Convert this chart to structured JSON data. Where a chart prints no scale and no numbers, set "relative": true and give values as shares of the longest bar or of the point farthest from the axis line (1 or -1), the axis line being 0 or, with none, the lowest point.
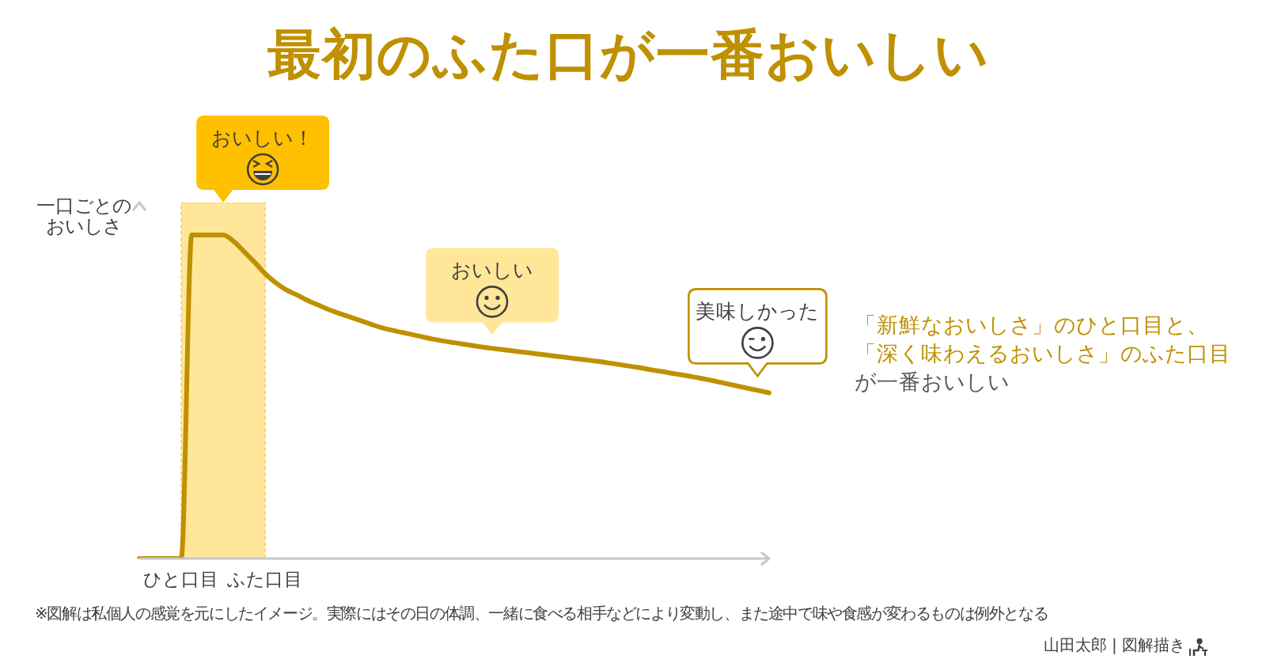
{
  "chart_data": {
    "type": "line",
    "title": "最初のふた口が一番おいしい",
    "ylabel": "一口ごとのおいしさ",
    "relative": true,
    "categories": [
      null,
      null,
      null,
      null,
      "ひと口目",
      null,
      null,
      null,
      null,
      null,
      null,
      null,
      "ふた口目",
      null,
      null,
      null,
      null,
      null,
      null,
      null,
      null,
      null,
      null,
      null,
      null,
      null,
      null,
      null,
      null,
      null,
      null,
      null,
      null,
      null,
      null,
      null,
      null,
      null,
      null,
      null,
      null,
      null,
      null,
      null,
      null,
      null,
      null,
      null,
      null,
      null,
      null,
      null,
      null,
      null,
      null,
      null,
      null,
      null,
      null,
      null,
      null
    ],
    "series": [
      {
        "color": "#bf9000",
        "values": [
          0,
          0,
          0,
          0,
          0,
          1,
          1,
          1,
          1,
          0.98,
          0.948,
          0.915,
          0.88,
          0.852,
          0.83,
          0.815,
          0.798,
          0.784,
          0.77,
          0.758,
          0.747,
          0.736,
          0.725,
          0.714,
          0.706,
          0.699,
          0.692,
          0.685,
          0.678,
          0.672,
          0.667,
          0.662,
          0.657,
          0.652,
          0.648,
          0.644,
          0.64,
          0.636,
          0.632,
          0.628,
          0.624,
          0.62,
          0.616,
          0.612,
          0.608,
          0.603,
          0.598,
          0.593,
          0.588,
          0.582,
          0.577,
          0.571,
          0.566,
          0.56,
          0.554,
          0.547,
          0.54,
          0.533,
          0.526,
          0.519,
          0.512
        ]
      }
    ],
    "bands": [
      {
        "axis": "x",
        "from": "ひと口目",
        "to": "ふた口目",
        "label": "おいしい！",
        "color": "#ffe699"
      }
    ],
    "annotations": [
      "おいしい",
      "美味しかった",
      "「新鮮なおいしさ」のひと口目と、",
      "「深く味わえるおいしさ」のふた口目",
      "が一番おいしい",
      "※図解は私個人の感覚を元にしたイメージ。実際にはその日の体調、一緒に食べる相手などにより変動し、また途中で味や食感が変わるものは例外となる",
      "山田太郎 | 図解描き"
    ],
    "marker": "none",
    "line_style": "solid"
  }
}
